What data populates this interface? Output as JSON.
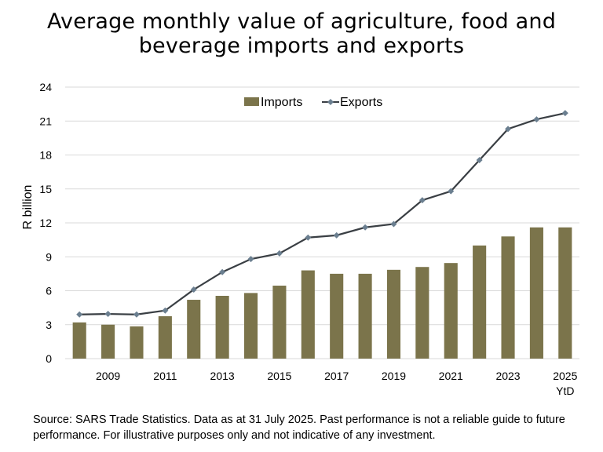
{
  "chart_data": {
    "type": "bar+line",
    "title": "Average monthly value of agriculture, food and beverage imports and exports",
    "title_lines": [
      "Average monthly value of agriculture, food and",
      "beverage imports and exports"
    ],
    "ylabel": "R billion",
    "xlabel": "",
    "ylim": [
      0,
      24
    ],
    "yticks": [
      0,
      3,
      6,
      9,
      12,
      15,
      18,
      21,
      24
    ],
    "grid": true,
    "legend": "top-center",
    "categories": [
      "2008",
      "2009",
      "2010",
      "2011",
      "2012",
      "2013",
      "2014",
      "2015",
      "2016",
      "2017",
      "2018",
      "2019",
      "2020",
      "2021",
      "2022",
      "2023",
      "2024",
      "2025"
    ],
    "xtick_labels": [
      "",
      "2009",
      "",
      "2011",
      "",
      "2013",
      "",
      "2015",
      "",
      "2017",
      "",
      "2019",
      "",
      "2021",
      "",
      "2023",
      "",
      "2025"
    ],
    "xtick_sublabel": "YtD",
    "series": [
      {
        "name": "Imports",
        "type": "bar",
        "color": "#7b744b",
        "values": [
          3.2,
          3.0,
          2.85,
          3.75,
          5.2,
          5.55,
          5.8,
          6.45,
          7.8,
          7.5,
          7.5,
          7.85,
          8.1,
          8.45,
          10.0,
          10.8,
          11.6,
          11.6
        ]
      },
      {
        "name": "Exports",
        "type": "line",
        "color": "#3a3f44",
        "marker_color": "#6b7f90",
        "values": [
          3.9,
          3.95,
          3.9,
          4.25,
          6.1,
          7.65,
          8.8,
          9.3,
          10.7,
          10.9,
          11.6,
          11.9,
          14.0,
          14.8,
          17.55,
          20.3,
          21.15,
          21.7
        ]
      }
    ]
  },
  "source_text": "Source: SARS Trade Statistics. Data as at 31 July 2025. Past performance is not a reliable guide to future performance. For illustrative purposes only and not indicative of any investment."
}
